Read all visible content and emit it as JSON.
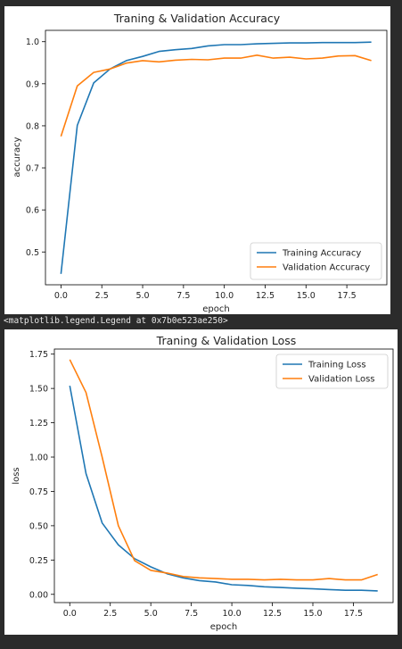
{
  "console": {
    "output_line": "<matplotlib.legend.Legend at 0x7b0e523ae250>"
  },
  "colors": {
    "training": "#1f77b4",
    "validation": "#ff7f0e",
    "background": "#2b2b2b",
    "panel": "#ffffff"
  },
  "chart_data": [
    {
      "type": "line",
      "title": "Traning & Validation Accuracy",
      "xlabel": "epoch",
      "ylabel": "accuracy",
      "xlim": [
        -0.95,
        19.95
      ],
      "ylim": [
        0.422,
        1.027
      ],
      "xticks": [
        0,
        2.5,
        5,
        7.5,
        10,
        12.5,
        15,
        17.5
      ],
      "xtick_labels": [
        "0.0",
        "2.5",
        "5.0",
        "7.5",
        "10.0",
        "12.5",
        "15.0",
        "17.5"
      ],
      "yticks": [
        0.5,
        0.6,
        0.7,
        0.8,
        0.9,
        1.0
      ],
      "ytick_labels": [
        "0.5",
        "0.6",
        "0.7",
        "0.8",
        "0.9",
        "1.0"
      ],
      "grid": false,
      "legend": "lower right",
      "x": [
        0,
        1,
        2,
        3,
        4,
        5,
        6,
        7,
        8,
        9,
        10,
        11,
        12,
        13,
        14,
        15,
        16,
        17,
        18,
        19
      ],
      "series": [
        {
          "name": "Training Accuracy",
          "color": "#1f77b4",
          "values": [
            0.448,
            0.801,
            0.902,
            0.935,
            0.955,
            0.965,
            0.977,
            0.981,
            0.984,
            0.99,
            0.993,
            0.993,
            0.995,
            0.996,
            0.997,
            0.997,
            0.998,
            0.998,
            0.998,
            0.999
          ]
        },
        {
          "name": "Validation Accuracy",
          "color": "#ff7f0e",
          "values": [
            0.775,
            0.895,
            0.927,
            0.935,
            0.949,
            0.955,
            0.952,
            0.956,
            0.958,
            0.957,
            0.961,
            0.961,
            0.968,
            0.961,
            0.963,
            0.959,
            0.961,
            0.966,
            0.967,
            0.955
          ]
        }
      ]
    },
    {
      "type": "line",
      "title": "Traning & Validation Loss",
      "xlabel": "epoch",
      "ylabel": "loss",
      "xlim": [
        -0.95,
        19.95
      ],
      "ylim": [
        -0.06,
        1.787
      ],
      "xticks": [
        0,
        2.5,
        5,
        7.5,
        10,
        12.5,
        15,
        17.5
      ],
      "xtick_labels": [
        "0.0",
        "2.5",
        "5.0",
        "7.5",
        "10.0",
        "12.5",
        "15.0",
        "17.5"
      ],
      "yticks": [
        0.0,
        0.25,
        0.5,
        0.75,
        1.0,
        1.25,
        1.5,
        1.75
      ],
      "ytick_labels": [
        "0.00",
        "0.25",
        "0.50",
        "0.75",
        "1.00",
        "1.25",
        "1.50",
        "1.75"
      ],
      "grid": false,
      "legend": "upper right",
      "x": [
        0,
        1,
        2,
        3,
        4,
        5,
        6,
        7,
        8,
        9,
        10,
        11,
        12,
        13,
        14,
        15,
        16,
        17,
        18,
        19
      ],
      "series": [
        {
          "name": "Training Loss",
          "color": "#1f77b4",
          "values": [
            1.52,
            0.88,
            0.52,
            0.36,
            0.26,
            0.2,
            0.15,
            0.12,
            0.1,
            0.09,
            0.07,
            0.065,
            0.055,
            0.05,
            0.045,
            0.04,
            0.035,
            0.03,
            0.03,
            0.025
          ]
        },
        {
          "name": "Validation Loss",
          "color": "#ff7f0e",
          "values": [
            1.71,
            1.47,
            1.0,
            0.5,
            0.245,
            0.175,
            0.155,
            0.13,
            0.12,
            0.115,
            0.11,
            0.11,
            0.105,
            0.11,
            0.105,
            0.105,
            0.115,
            0.105,
            0.105,
            0.145
          ]
        }
      ]
    }
  ]
}
